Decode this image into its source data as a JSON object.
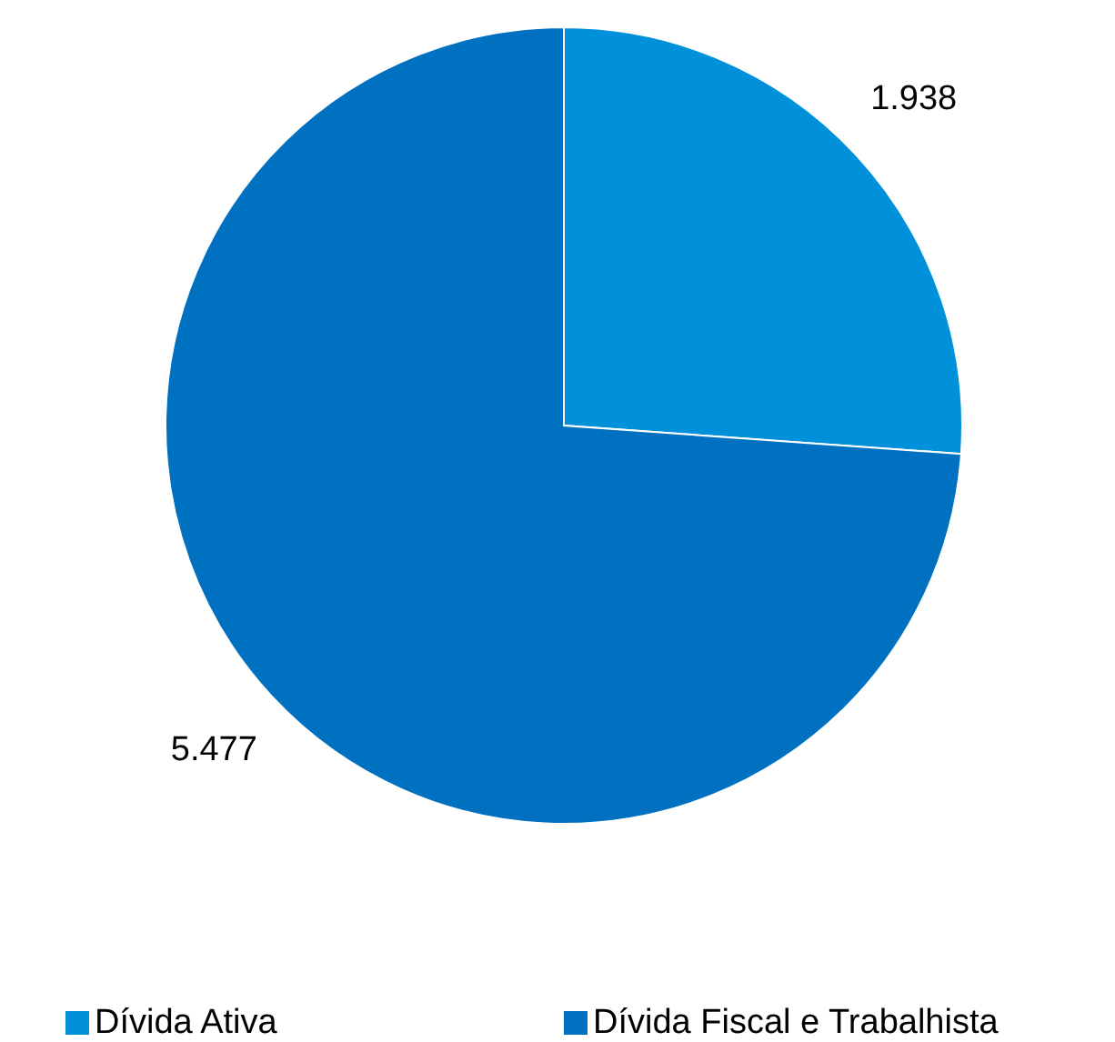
{
  "chart_data": {
    "type": "pie",
    "categories": [
      "Dívida Ativa",
      "Dívida Fiscal e Trabalhista"
    ],
    "values": [
      1938,
      5477
    ],
    "value_labels": [
      "1.938",
      "5.477"
    ],
    "colors": [
      "#0091da",
      "#0070c0"
    ],
    "legend": "bottom"
  }
}
